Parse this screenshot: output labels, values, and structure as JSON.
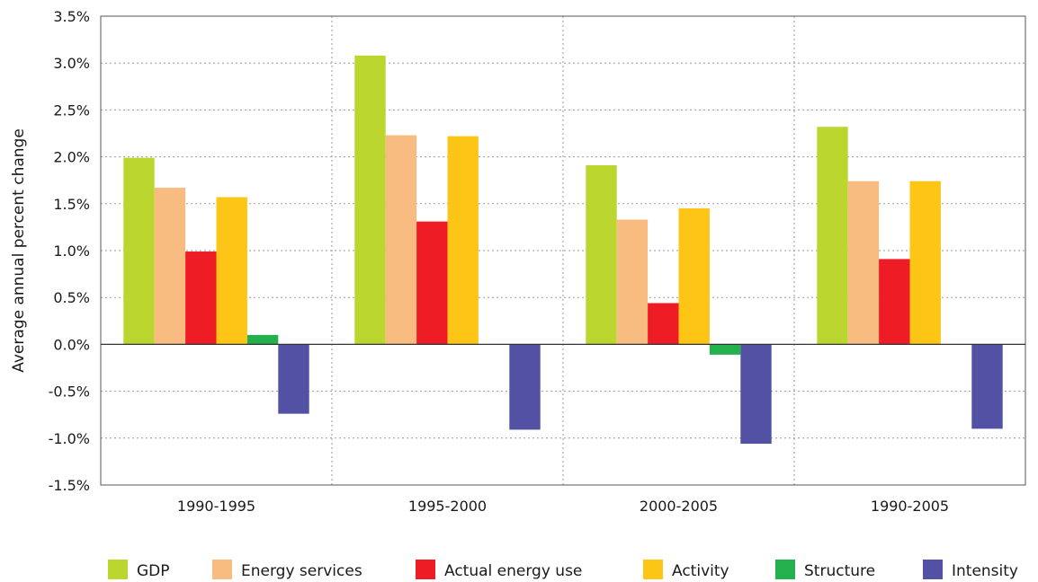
{
  "chart_data": {
    "type": "bar",
    "title": "",
    "xlabel": "",
    "ylabel": "Average annual percent change",
    "ylim": [
      -1.5,
      3.5
    ],
    "ytick_step": 0.5,
    "ytick_labels": [
      "-1.5%",
      "-1.0%",
      "-0.5%",
      "0.0%",
      "0.5%",
      "1.0%",
      "1.5%",
      "2.0%",
      "2.5%",
      "3.0%",
      "3.5%"
    ],
    "grid": "dotted",
    "legend_position": "bottom",
    "categories": [
      "1990-1995",
      "1995-2000",
      "2000-2005",
      "1990-2005"
    ],
    "series": [
      {
        "name": "GDP",
        "color": "#bcd630",
        "values": [
          1.99,
          3.08,
          1.91,
          2.32
        ]
      },
      {
        "name": "Energy services",
        "color": "#f9bc80",
        "values": [
          1.67,
          2.23,
          1.33,
          1.74
        ]
      },
      {
        "name": "Actual energy use",
        "color": "#ee1c25",
        "values": [
          0.99,
          1.31,
          0.44,
          0.91
        ]
      },
      {
        "name": "Activity",
        "color": "#fdc516",
        "values": [
          1.57,
          2.22,
          1.45,
          1.74
        ]
      },
      {
        "name": "Structure",
        "color": "#22b14c",
        "values": [
          0.1,
          0.0,
          -0.11,
          0.0
        ]
      },
      {
        "name": "Intensity",
        "color": "#5351a3",
        "values": [
          -0.74,
          -0.91,
          -1.06,
          -0.9
        ]
      }
    ]
  }
}
